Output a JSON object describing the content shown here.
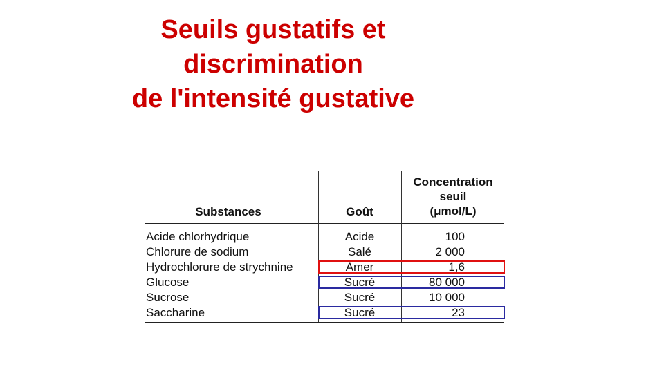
{
  "title": {
    "line1": "Seuils gustatifs et",
    "line2": "discrimination",
    "line3": "de l'intensité gustative"
  },
  "table": {
    "headers": {
      "substances": "Substances",
      "gout": "Goût",
      "concentration_line1": "Concentration",
      "concentration_line2": "seuil",
      "concentration_line3": "(μmol/L)"
    },
    "rows": [
      {
        "substance": "Acide chlorhydrique",
        "gout": "Acide",
        "concentration": "100"
      },
      {
        "substance": "Chlorure de sodium",
        "gout": "Salé",
        "concentration": "2 000"
      },
      {
        "substance": "Hydrochlorure de strychnine",
        "gout": "Amer",
        "concentration": "1,6"
      },
      {
        "substance": "Glucose",
        "gout": "Sucré",
        "concentration": "80 000"
      },
      {
        "substance": "Sucrose",
        "gout": "Sucré",
        "concentration": "10 000"
      },
      {
        "substance": "Saccharine",
        "gout": "Sucré",
        "concentration": "23"
      }
    ]
  },
  "highlight_colors": {
    "red": "#e01010",
    "blue": "#2a2aa0"
  },
  "title_color": "#cc0000"
}
